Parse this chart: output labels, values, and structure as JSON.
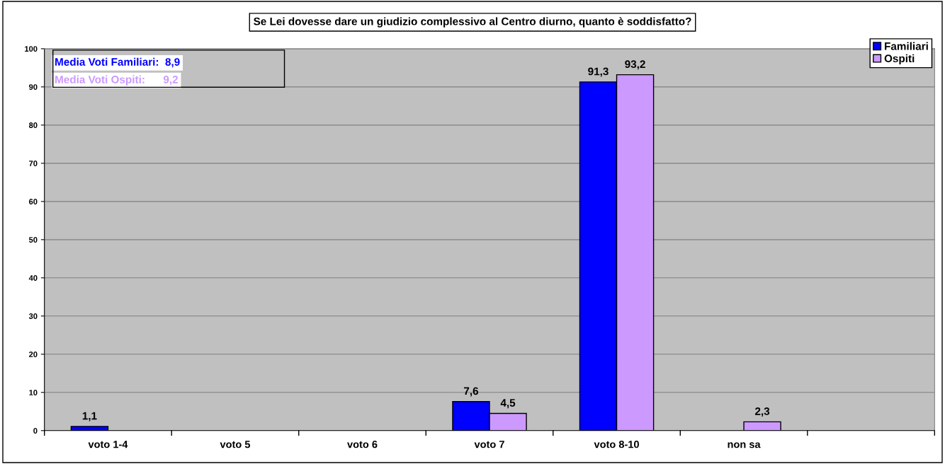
{
  "chart_data": {
    "type": "bar",
    "title": "Se Lei dovesse dare un giudizio complessivo al Centro diurno, quanto è soddisfatto?",
    "categories": [
      "voto 1-4",
      "voto 5",
      "voto 6",
      "voto 7",
      "voto 8-10",
      "non sa",
      null
    ],
    "series": [
      {
        "name": "Familiari",
        "color": "#0000ff",
        "values": [
          1.1,
          null,
          null,
          7.6,
          91.3,
          null,
          null
        ],
        "value_labels": [
          "1,1",
          null,
          null,
          "7,6",
          "91,3",
          null,
          null
        ]
      },
      {
        "name": "Ospiti",
        "color": "#cc99ff",
        "values": [
          null,
          null,
          null,
          4.5,
          93.2,
          2.3,
          null
        ],
        "value_labels": [
          null,
          null,
          null,
          "4,5",
          "93,2",
          "2,3",
          null
        ]
      }
    ],
    "annotations": [
      "Media Voti Familiari:  8,9",
      "Media Voti Ospiti:      9,2"
    ],
    "ylim": [
      0,
      100
    ],
    "yticks": [
      0,
      10,
      20,
      30,
      40,
      50,
      60,
      70,
      80,
      90,
      100
    ],
    "grid": "y",
    "legend": "top right"
  }
}
